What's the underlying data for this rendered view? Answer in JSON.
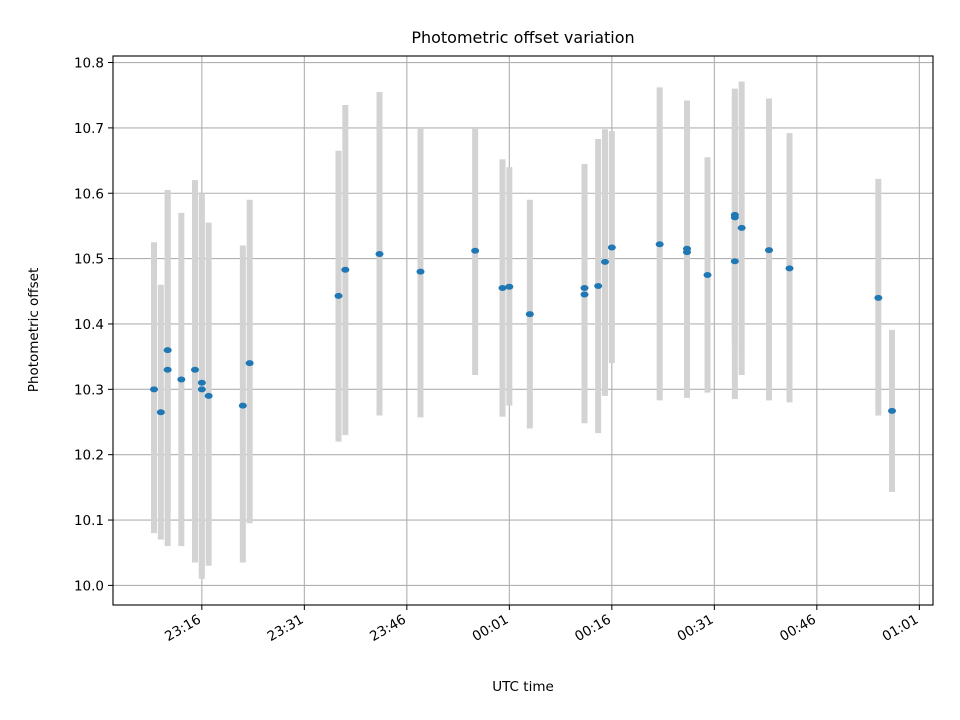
{
  "chart_data": {
    "type": "scatter",
    "title": "Photometric offset variation",
    "xlabel": "UTC time",
    "ylabel": "Photometric offset",
    "grid": true,
    "x_ticks": [
      "23:16",
      "23:31",
      "23:46",
      "00:01",
      "00:16",
      "00:31",
      "00:46",
      "01:01"
    ],
    "y_ticks": [
      "10.0",
      "10.1",
      "10.2",
      "10.3",
      "10.4",
      "10.5",
      "10.6",
      "10.7",
      "10.8"
    ],
    "xlim": [
      "23:03",
      "01:03"
    ],
    "ylim": [
      9.97,
      10.81
    ],
    "colors": {
      "point": "#1f77b4",
      "errorbar": "#d3d3d3",
      "grid": "#b0b0b0"
    },
    "series": [
      {
        "points": [
          {
            "x": "23:09",
            "y": 10.3,
            "err_low": 10.08,
            "err_high": 10.525
          },
          {
            "x": "23:10",
            "y": 10.265,
            "err_low": 10.07,
            "err_high": 10.46
          },
          {
            "x": "23:11",
            "y": 10.36,
            "err_low": 10.11,
            "err_high": 10.605
          },
          {
            "x": "23:11",
            "y": 10.33,
            "err_low": 10.06,
            "err_high": 10.6
          },
          {
            "x": "23:13",
            "y": 10.315,
            "err_low": 10.06,
            "err_high": 10.57
          },
          {
            "x": "23:15",
            "y": 10.33,
            "err_low": 10.035,
            "err_high": 10.62
          },
          {
            "x": "23:16",
            "y": 10.31,
            "err_low": 10.02,
            "err_high": 10.6
          },
          {
            "x": "23:16",
            "y": 10.3,
            "err_low": 10.01,
            "err_high": 10.59
          },
          {
            "x": "23:17",
            "y": 10.29,
            "err_low": 10.03,
            "err_high": 10.555
          },
          {
            "x": "23:22",
            "y": 10.275,
            "err_low": 10.035,
            "err_high": 10.52
          },
          {
            "x": "23:23",
            "y": 10.34,
            "err_low": 10.095,
            "err_high": 10.59
          },
          {
            "x": "23:36",
            "y": 10.443,
            "err_low": 10.22,
            "err_high": 10.665
          },
          {
            "x": "23:37",
            "y": 10.483,
            "err_low": 10.23,
            "err_high": 10.735
          },
          {
            "x": "23:42",
            "y": 10.507,
            "err_low": 10.26,
            "err_high": 10.755
          },
          {
            "x": "23:48",
            "y": 10.48,
            "err_low": 10.257,
            "err_high": 10.7
          },
          {
            "x": "23:56",
            "y": 10.512,
            "err_low": 10.322,
            "err_high": 10.7
          },
          {
            "x": "00:00",
            "y": 10.455,
            "err_low": 10.258,
            "err_high": 10.652
          },
          {
            "x": "00:01",
            "y": 10.457,
            "err_low": 10.275,
            "err_high": 10.64
          },
          {
            "x": "00:04",
            "y": 10.415,
            "err_low": 10.24,
            "err_high": 10.59
          },
          {
            "x": "00:12",
            "y": 10.455,
            "err_low": 10.265,
            "err_high": 10.645
          },
          {
            "x": "00:12",
            "y": 10.445,
            "err_low": 10.248,
            "err_high": 10.643
          },
          {
            "x": "00:14",
            "y": 10.458,
            "err_low": 10.233,
            "err_high": 10.683
          },
          {
            "x": "00:15",
            "y": 10.495,
            "err_low": 10.29,
            "err_high": 10.698
          },
          {
            "x": "00:16",
            "y": 10.517,
            "err_low": 10.34,
            "err_high": 10.695
          },
          {
            "x": "00:23",
            "y": 10.522,
            "err_low": 10.283,
            "err_high": 10.762
          },
          {
            "x": "00:27",
            "y": 10.51,
            "err_low": 10.3,
            "err_high": 10.722
          },
          {
            "x": "00:27",
            "y": 10.515,
            "err_low": 10.287,
            "err_high": 10.742
          },
          {
            "x": "00:30",
            "y": 10.475,
            "err_low": 10.295,
            "err_high": 10.655
          },
          {
            "x": "00:34",
            "y": 10.563,
            "err_low": 10.367,
            "err_high": 10.76
          },
          {
            "x": "00:34",
            "y": 10.567,
            "err_low": 10.385,
            "err_high": 10.75
          },
          {
            "x": "00:34",
            "y": 10.496,
            "err_low": 10.285,
            "err_high": 10.707
          },
          {
            "x": "00:35",
            "y": 10.547,
            "err_low": 10.322,
            "err_high": 10.771
          },
          {
            "x": "00:39",
            "y": 10.513,
            "err_low": 10.283,
            "err_high": 10.745
          },
          {
            "x": "00:42",
            "y": 10.485,
            "err_low": 10.28,
            "err_high": 10.692
          },
          {
            "x": "00:55",
            "y": 10.44,
            "err_low": 10.26,
            "err_high": 10.622
          },
          {
            "x": "00:57",
            "y": 10.267,
            "err_low": 10.143,
            "err_high": 10.391
          }
        ]
      }
    ]
  }
}
